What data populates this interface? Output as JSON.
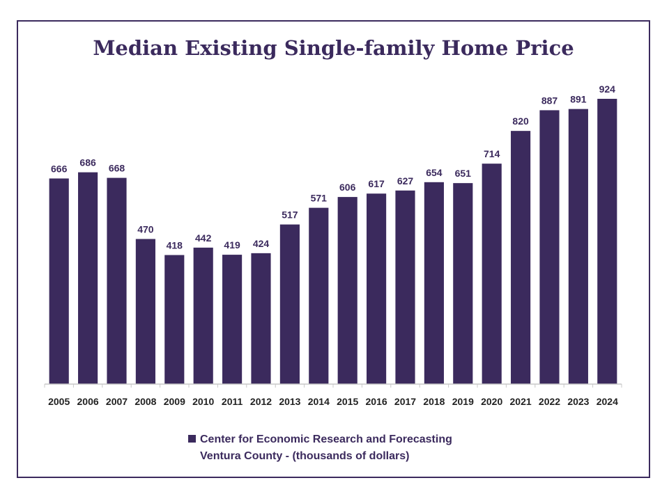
{
  "colors": {
    "bar": "#3b2a5d",
    "frame": "#3b2a5d",
    "title": "#3b2a5d",
    "axis": "#c8c8c8"
  },
  "chart_data": {
    "type": "bar",
    "title": "Median Existing Single-family Home Price",
    "categories": [
      "2005",
      "2006",
      "2007",
      "2008",
      "2009",
      "2010",
      "2011",
      "2012",
      "2013",
      "2014",
      "2015",
      "2016",
      "2017",
      "2018",
      "2019",
      "2020",
      "2021",
      "2022",
      "2023",
      "2024"
    ],
    "series": [
      {
        "name": "Center for Economic Research and Forecasting Ventura County - (thousands of dollars)",
        "values": [
          666,
          686,
          668,
          470,
          418,
          442,
          419,
          424,
          517,
          571,
          606,
          617,
          627,
          654,
          651,
          714,
          820,
          887,
          891,
          924
        ]
      }
    ],
    "ylim": [
      0,
      924
    ],
    "grid": false,
    "legend_position": "bottom"
  },
  "legend": {
    "line1": "Center for Economic Research and Forecasting",
    "line2": "Ventura County - (thousands of dollars)"
  }
}
